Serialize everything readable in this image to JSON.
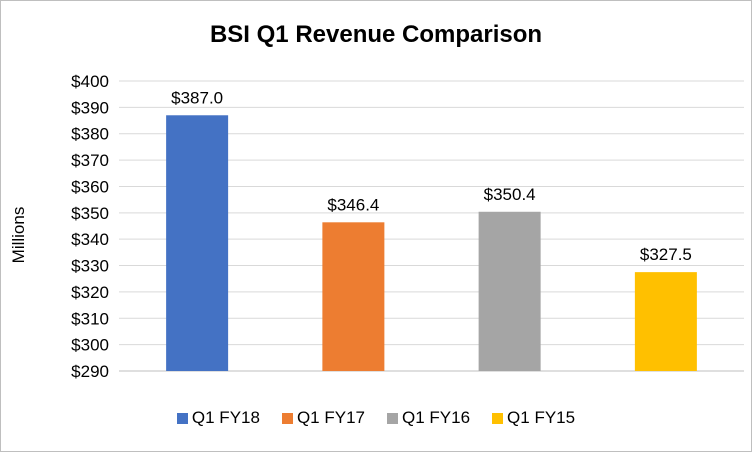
{
  "chart_data": {
    "type": "bar",
    "title": "BSI Q1 Revenue Comparison",
    "xlabel": "",
    "ylabel": "Millions",
    "categories": [
      "Q1 FY18",
      "Q1 FY17",
      "Q1 FY16",
      "Q1 FY15"
    ],
    "values": [
      387.0,
      346.4,
      350.4,
      327.5
    ],
    "data_labels": [
      "$387.0",
      "$346.4",
      "$350.4",
      "$327.5"
    ],
    "colors": [
      "#4472C4",
      "#ED7D31",
      "#A5A5A5",
      "#FFC000"
    ],
    "ylim": [
      290,
      400
    ],
    "yticks": [
      290,
      300,
      310,
      320,
      330,
      340,
      350,
      360,
      370,
      380,
      390,
      400
    ],
    "ytick_labels": [
      "$290",
      "$300",
      "$310",
      "$320",
      "$330",
      "$340",
      "$350",
      "$360",
      "$370",
      "$380",
      "$390",
      "$400"
    ],
    "grid": true,
    "legend": "bottom",
    "legend_entries": [
      "Q1 FY18",
      "Q1 FY17",
      "Q1 FY16",
      "Q1 FY15"
    ]
  }
}
